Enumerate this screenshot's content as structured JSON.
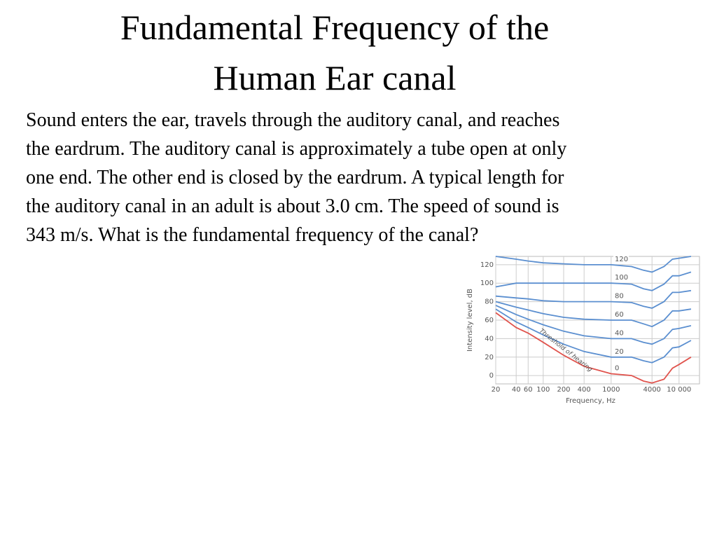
{
  "title": {
    "lines": [
      "Fundamental Frequency of the",
      "Human Ear canal"
    ]
  },
  "body": {
    "lines": [
      "Sound enters the ear, travels through the auditory canal, and reaches",
      "the eardrum. The auditory canal is approximately a tube open at only",
      "one end. The other end is closed by the eardrum. A typical length for",
      "the auditory canal in an adult is about 3.0 cm. The speed of sound is",
      "343 m/s. What is the fundamental frequency of the canal?"
    ]
  },
  "figure": {
    "type": "line",
    "x_label": "Frequency, Hz",
    "y_label": "Intensity level, dB",
    "annotation": "Threshold of hearing",
    "log_x": true,
    "grid": true,
    "xlim": [
      20,
      20000
    ],
    "ylim": [
      -9,
      129
    ],
    "xticks": [
      20,
      40,
      60,
      100,
      200,
      400,
      1000,
      4000,
      {
        "value": 10000,
        "label": "10 000"
      }
    ],
    "yticks": [
      0,
      20,
      40,
      60,
      80,
      100,
      120
    ],
    "x": [
      20,
      40,
      60,
      100,
      200,
      400,
      1000,
      2000,
      3000,
      4000,
      6000,
      8000,
      10000,
      15000
    ],
    "series": [
      {
        "name": "120",
        "color": "#5b8fd0",
        "values": [
          129,
          126,
          124,
          122,
          121,
          120,
          120,
          118,
          114,
          112,
          118,
          126,
          127,
          129
        ]
      },
      {
        "name": "100",
        "color": "#5b8fd0",
        "values": [
          96,
          100,
          100,
          100,
          100,
          100,
          100,
          99,
          94,
          92,
          99,
          108,
          108,
          112
        ]
      },
      {
        "name": "80",
        "color": "#5b8fd0",
        "values": [
          86,
          84,
          83,
          81,
          80,
          80,
          80,
          79,
          75,
          73,
          80,
          90,
          90,
          92
        ]
      },
      {
        "name": "60",
        "color": "#5b8fd0",
        "values": [
          80,
          74,
          71,
          67,
          63,
          61,
          60,
          60,
          56,
          53,
          60,
          70,
          70,
          72
        ]
      },
      {
        "name": "40",
        "color": "#5b8fd0",
        "values": [
          76,
          66,
          61,
          55,
          48,
          43,
          40,
          40,
          36,
          34,
          40,
          50,
          51,
          54
        ]
      },
      {
        "name": "20",
        "color": "#5b8fd0",
        "values": [
          72,
          58,
          52,
          44,
          34,
          26,
          20,
          20,
          16,
          14,
          20,
          30,
          31,
          38
        ]
      },
      {
        "name": "0",
        "color": "#e0534d",
        "values": [
          68,
          52,
          46,
          36,
          22,
          10,
          2,
          0,
          -6,
          -8,
          -4,
          8,
          12,
          20
        ]
      }
    ]
  }
}
